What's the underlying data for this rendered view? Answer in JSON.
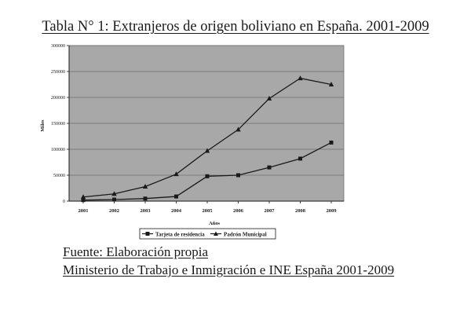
{
  "title": "Tabla N° 1: Extranjeros de origen boliviano en España. 2001-2009",
  "source_lines": [
    "Fuente: Elaboración propia",
    "Ministerio de Trabajo e Inmigración e INE España 2001-2009"
  ],
  "chart_data": {
    "type": "line",
    "x": [
      "2001",
      "2002",
      "2003",
      "2004",
      "2005",
      "2006",
      "2007",
      "2008",
      "2009"
    ],
    "xlabel": "Años",
    "ylabel": "Miles",
    "ylim": [
      0,
      300000
    ],
    "yticks": [
      0,
      50000,
      100000,
      150000,
      200000,
      250000,
      300000
    ],
    "grid": true,
    "legend": "bottom",
    "series": [
      {
        "name": "Tarjeta de residencia",
        "marker": "square",
        "values": [
          2000,
          3000,
          5000,
          9000,
          48000,
          50000,
          65000,
          82000,
          113000
        ]
      },
      {
        "name": "Padrón Municipal",
        "marker": "triangle",
        "values": [
          8000,
          14000,
          28000,
          52000,
          97000,
          138000,
          198000,
          237000,
          225000
        ]
      }
    ],
    "plot_background": "#a8a8a8",
    "line_color": "#1a1a1a"
  }
}
